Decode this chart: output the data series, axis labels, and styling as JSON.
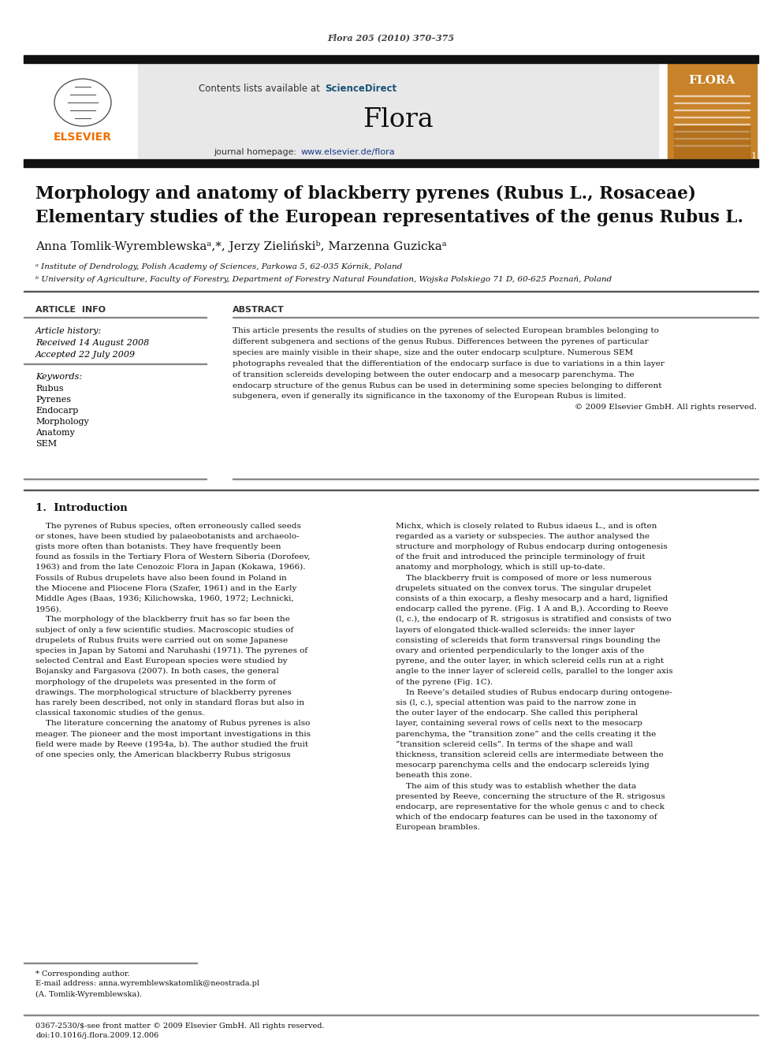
{
  "page_citation": "Flora 205 (2010) 370–375",
  "journal_name": "Flora",
  "contents_text": "Contents lists available at ScienceDirect",
  "sciencedirect_color": "#1a5276",
  "journal_url_color": "#1a5276",
  "title_line1": "Morphology and anatomy of blackberry pyrenes (Rubus L., Rosaceae)",
  "title_line2": "Elementary studies of the European representatives of the genus Rubus L.",
  "authors": "Anna Tomlik-Wyremblewskaᵃ,*, Jerzy Zielińskiᵇ, Marzenna Guzickaᵃ",
  "affil_a": "ᵃ Institute of Dendrology, Polish Academy of Sciences, Parkowa 5, 62-035 Kórnik, Poland",
  "affil_b": "ᵇ University of Agriculture, Faculty of Forestry, Department of Forestry Natural Foundation, Wojska Polskiego 71 D, 60-625 Poznań, Poland",
  "article_info_header": "ARTICLE  INFO",
  "abstract_header": "ABSTRACT",
  "article_history_label": "Article history:",
  "received": "Received 14 August 2008",
  "accepted": "Accepted 22 July 2009",
  "keywords_label": "Keywords:",
  "keywords": [
    "Rubus",
    "Pyrenes",
    "Endocarp",
    "Morphology",
    "Anatomy",
    "SEM"
  ],
  "abstract_lines": [
    "This article presents the results of studies on the pyrenes of selected European brambles belonging to",
    "different subgenera and sections of the genus Rubus. Differences between the pyrenes of particular",
    "species are mainly visible in their shape, size and the outer endocarp sculpture. Numerous SEM",
    "photographs revealed that the differentiation of the endocarp surface is due to variations in a thin layer",
    "of transition sclereids developing between the outer endocarp and a mesocarp parenchyma. The",
    "endocarp structure of the genus Rubus can be used in determining some species belonging to different",
    "subgenera, even if generally its significance in the taxonomy of the European Rubus is limited."
  ],
  "copyright": "© 2009 Elsevier GmbH. All rights reserved.",
  "intro_header": "1.  Introduction",
  "col1_lines": [
    "    The pyrenes of Rubus species, often erroneously called seeds",
    "or stones, have been studied by palaeobotanists and archaeolo-",
    "gists more often than botanists. They have frequently been",
    "found as fossils in the Tertiary Flora of Western Siberia (Dorofeev,",
    "1963) and from the late Cenozoic Flora in Japan (Kokawa, 1966).",
    "Fossils of Rubus drupelets have also been found in Poland in",
    "the Miocene and Pliocene Flora (Szafer, 1961) and in the Early",
    "Middle Ages (Baas, 1936; Kilichowska, 1960, 1972; Lechnicki,",
    "1956).",
    "    The morphology of the blackberry fruit has so far been the",
    "subject of only a few scientific studies. Macroscopic studies of",
    "drupelets of Rubus fruits were carried out on some Japanese",
    "species in Japan by Satomi and Naruhashi (1971). The pyrenes of",
    "selected Central and East European species were studied by",
    "Bojansky and Fargasova (2007). In both cases, the general",
    "morphology of the drupelets was presented in the form of",
    "drawings. The morphological structure of blackberry pyrenes",
    "has rarely been described, not only in standard floras but also in",
    "classical taxonomic studies of the genus.",
    "    The literature concerning the anatomy of Rubus pyrenes is also",
    "meager. The pioneer and the most important investigations in this",
    "field were made by Reeve (1954a, b). The author studied the fruit",
    "of one species only, the American blackberry Rubus strigosus"
  ],
  "col2_lines": [
    "Michx, which is closely related to Rubus idaeus L., and is often",
    "regarded as a variety or subspecies. The author analysed the",
    "structure and morphology of Rubus endocarp during ontogenesis",
    "of the fruit and introduced the principle terminology of fruit",
    "anatomy and morphology, which is still up-to-date.",
    "    The blackberry fruit is composed of more or less numerous",
    "drupelets situated on the convex torus. The singular drupelet",
    "consists of a thin exocarp, a fleshy mesocarp and a hard, lignified",
    "endocarp called the pyrene. (Fig. 1 A and B,). According to Reeve",
    "(l, c.), the endocarp of R. strigosus is stratified and consists of two",
    "layers of elongated thick-walled sclereids: the inner layer",
    "consisting of sclereids that form transversal rings bounding the",
    "ovary and oriented perpendicularly to the longer axis of the",
    "pyrene, and the outer layer, in which sclereid cells run at a right",
    "angle to the inner layer of sclereid cells, parallel to the longer axis",
    "of the pyrene (Fig. 1C).",
    "    In Reeve’s detailed studies of Rubus endocarp during ontogene-",
    "sis (l, c.), special attention was paid to the narrow zone in",
    "the outer layer of the endocarp. She called this peripheral",
    "layer, containing several rows of cells next to the mesocarp",
    "parenchyma, the “transition zone” and the cells creating it the",
    "“transition sclereid cells”. In terms of the shape and wall",
    "thickness, transition sclereid cells are intermediate between the",
    "mesocarp parenchyma cells and the endocarp sclereids lying",
    "beneath this zone.",
    "    The aim of this study was to establish whether the data",
    "presented by Reeve, concerning the structure of the R. strigosus",
    "endocarp, are representative for the whole genus c and to check",
    "which of the endocarp features can be used in the taxonomy of",
    "European brambles."
  ],
  "footnote_corr": "* Corresponding author.",
  "footnote_email": "E-mail address: anna.wyremblewskatomlik@neostrada.pl",
  "footnote_name": "(A. Tomlik-Wyremblewska).",
  "footer_line1": "0367-2530/$-see front matter © 2009 Elsevier GmbH. All rights reserved.",
  "footer_line2": "doi:10.1016/j.flora.2009.12.006",
  "bg_color": "#ffffff",
  "header_bg": "#e8e8e8",
  "dark_bar_color": "#111111",
  "elsevier_orange": "#f07000",
  "link_color": "#1a3a8a",
  "text_color": "#111111",
  "gray_line": "#888888"
}
